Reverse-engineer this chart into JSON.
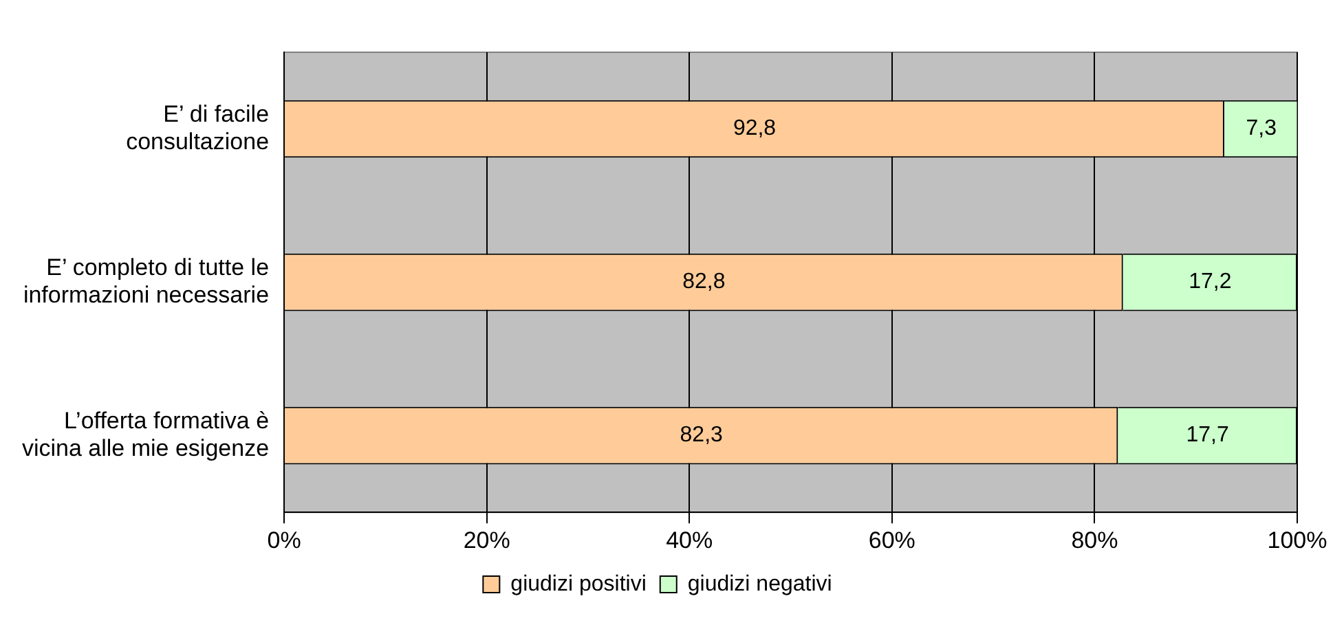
{
  "chart_data": {
    "type": "bar",
    "orientation": "horizontal",
    "stacked": true,
    "categories": [
      "E’ di facile consultazione",
      "E’ completo di tutte le informazioni necessarie",
      "L’offerta formativa è vicina alle mie esigenze"
    ],
    "series": [
      {
        "name": "giudizi positivi",
        "color": "#ffcc99",
        "values": [
          92.8,
          82.8,
          82.3
        ],
        "value_labels": [
          "92,8",
          "82,8",
          "82,3"
        ]
      },
      {
        "name": "giudizi negativi",
        "color": "#ccffcc",
        "values": [
          7.3,
          17.2,
          17.7
        ],
        "value_labels": [
          "7,3",
          "17,2",
          "17,7"
        ]
      }
    ],
    "xlim": [
      0,
      100
    ],
    "xticks": [
      {
        "value": 0,
        "label": "0%"
      },
      {
        "value": 20,
        "label": "20%"
      },
      {
        "value": 40,
        "label": "40%"
      },
      {
        "value": 60,
        "label": "60%"
      },
      {
        "value": 80,
        "label": "80%"
      },
      {
        "value": 100,
        "label": "100%"
      }
    ],
    "grid": "x",
    "legend": "bottom"
  }
}
